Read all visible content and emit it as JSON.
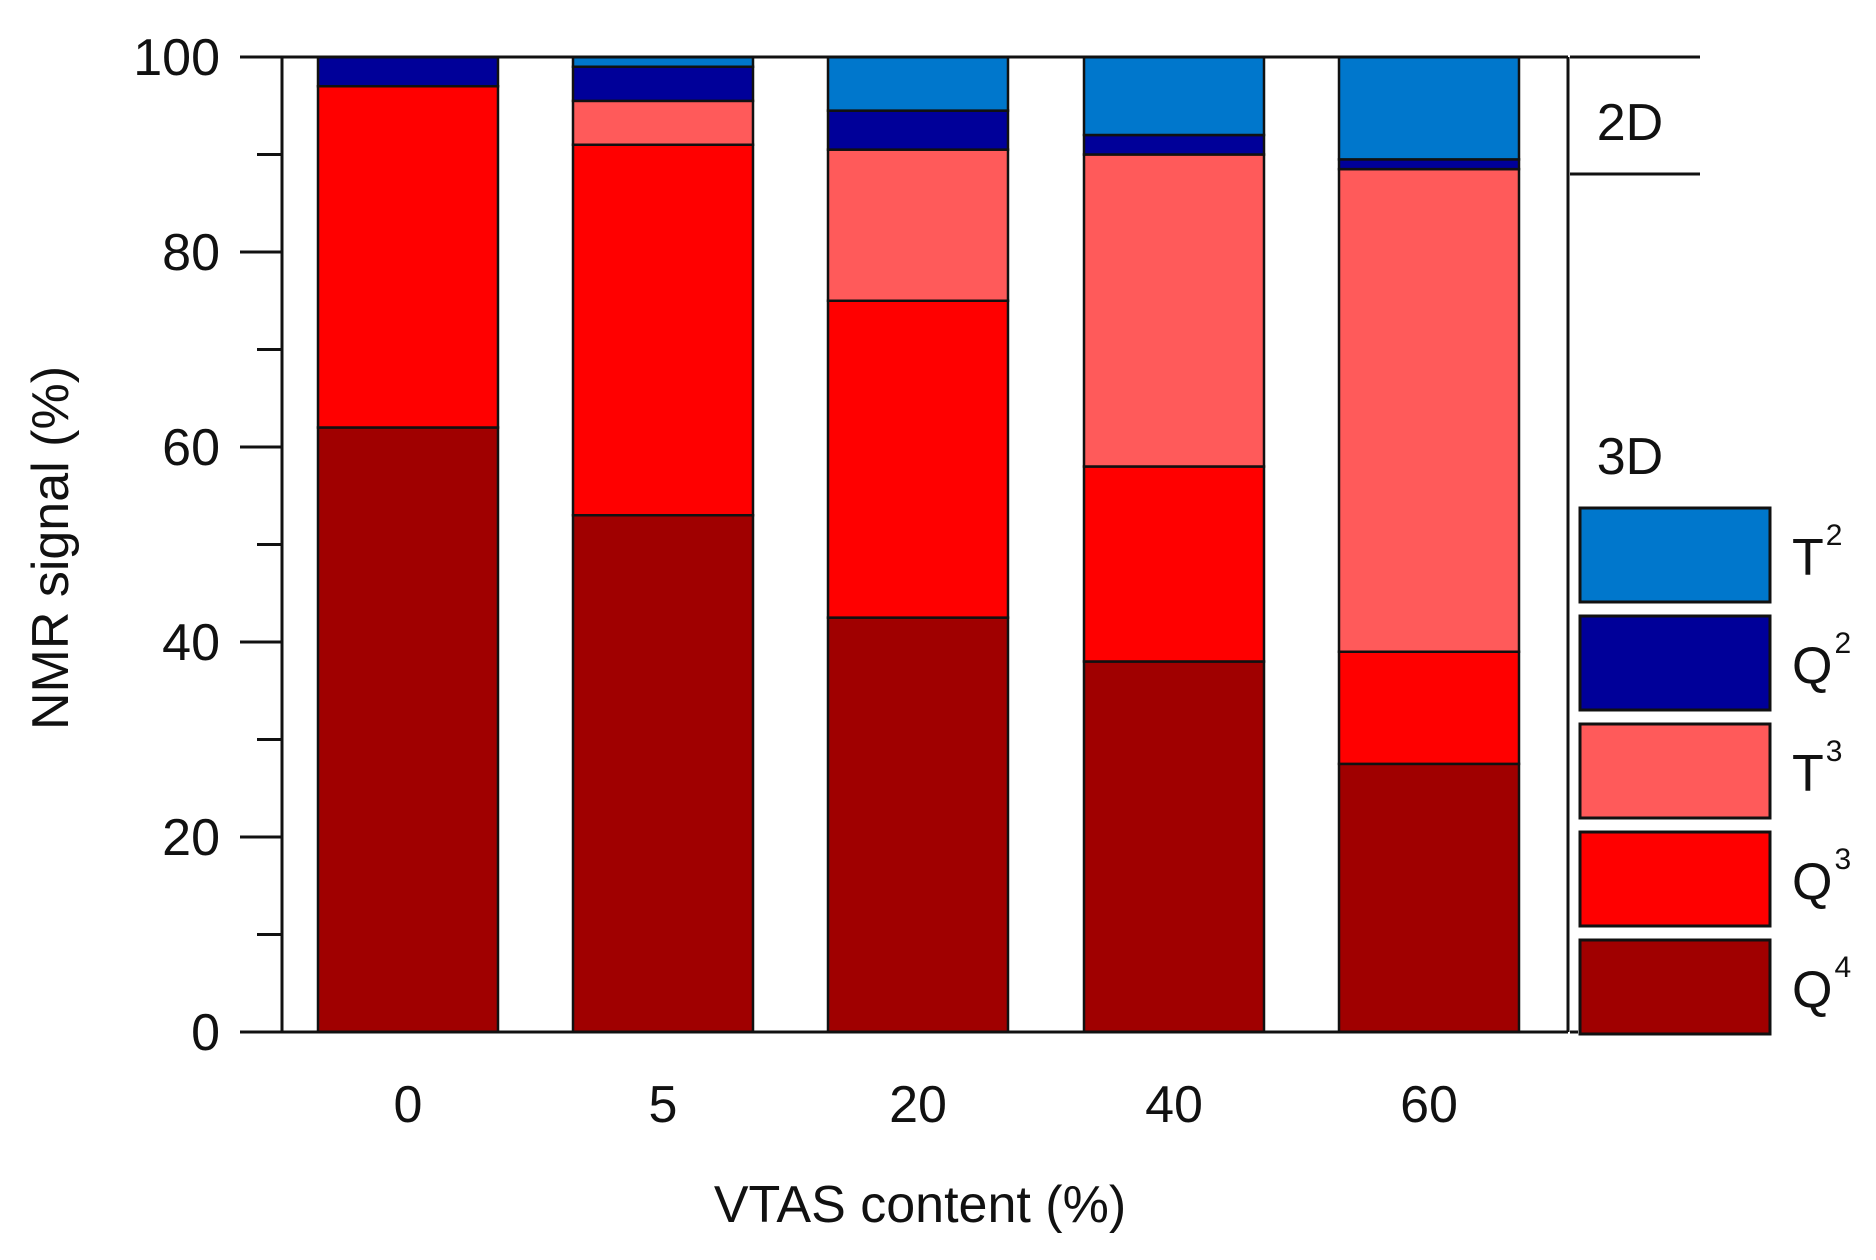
{
  "chart_data": {
    "type": "bar",
    "stacked": true,
    "title": "",
    "xlabel": "VTAS content (%)",
    "ylabel": "NMR signal  (%)",
    "categories": [
      "0",
      "5",
      "20",
      "40",
      "60"
    ],
    "ylim": [
      0,
      100
    ],
    "yticks": [
      0,
      20,
      40,
      60,
      80,
      100
    ],
    "yticks_minor": [
      10,
      30,
      50,
      70,
      90
    ],
    "series": [
      {
        "name": "Q4",
        "base": "Q",
        "sup": "4",
        "color": "#a00000",
        "values": [
          62,
          53,
          42.5,
          38,
          27.5
        ]
      },
      {
        "name": "Q3",
        "base": "Q",
        "sup": "3",
        "color": "#ff0000",
        "values": [
          35,
          38,
          32.5,
          20,
          11.5
        ]
      },
      {
        "name": "T3",
        "base": "T",
        "sup": "3",
        "color": "#ff5a5a",
        "values": [
          0,
          4.5,
          15.5,
          32,
          49.5
        ]
      },
      {
        "name": "Q2",
        "base": "Q",
        "sup": "2",
        "color": "#000099",
        "values": [
          3,
          3.5,
          4,
          2,
          1
        ]
      },
      {
        "name": "T2",
        "base": "T",
        "sup": "2",
        "color": "#0077cc",
        "values": [
          0,
          1,
          5.5,
          8,
          10.5
        ]
      }
    ],
    "dimension_labels": {
      "upper": "2D",
      "lower": "3D"
    },
    "legend": {
      "placement": "right",
      "order": [
        "T2",
        "Q2",
        "T3",
        "Q3",
        "Q4"
      ]
    },
    "grid": false
  }
}
